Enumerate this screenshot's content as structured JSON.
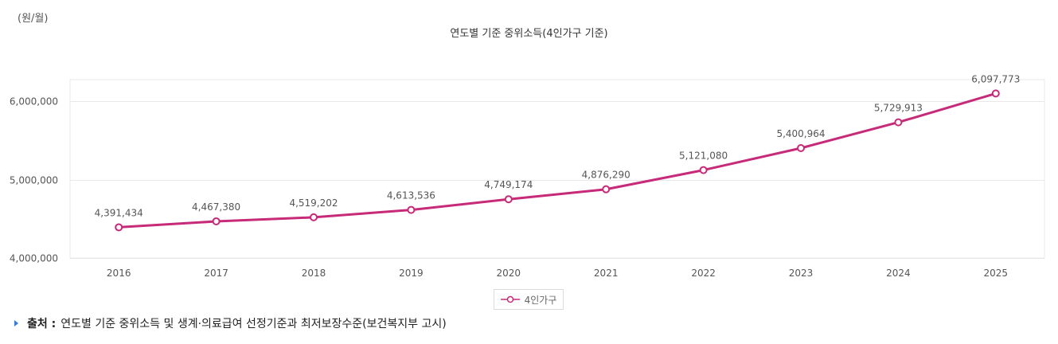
{
  "chart_data": {
    "type": "line",
    "title": "연도별 기준 중위소득(4인가구 기준)",
    "unit_label": "(원/월)",
    "xlabel": "",
    "ylabel": "(원/월)",
    "ylim": [
      4000000,
      6200000
    ],
    "y_ticks": [
      4000000,
      5000000,
      6000000
    ],
    "y_tick_labels": [
      "4,000,000",
      "5,000,000",
      "6,000,000"
    ],
    "categories": [
      "2016",
      "2017",
      "2018",
      "2019",
      "2020",
      "2021",
      "2022",
      "2023",
      "2024",
      "2025"
    ],
    "series": [
      {
        "name": "4인가구",
        "color": "#c72a78",
        "values": [
          4391434,
          4467380,
          4519202,
          4613536,
          4749174,
          4876290,
          5121080,
          5400964,
          5729913,
          6097773
        ],
        "value_labels": [
          "4,391,434",
          "4,467,380",
          "4,519,202",
          "4,613,536",
          "4,749,174",
          "4,876,290",
          "5,121,080",
          "5,400,964",
          "5,729,913",
          "6,097,773"
        ]
      }
    ],
    "legend_position": "bottom-center",
    "grid": true
  },
  "source": {
    "label": "출처 :",
    "text": "연도별 기준 중위소득 및 생계·의료급여 선정기준과 최저보장수준(보건복지부 고시)"
  },
  "colors": {
    "series": "#c72a78",
    "grid": "#e8e8e8",
    "source_marker": "#3a7bd5"
  }
}
